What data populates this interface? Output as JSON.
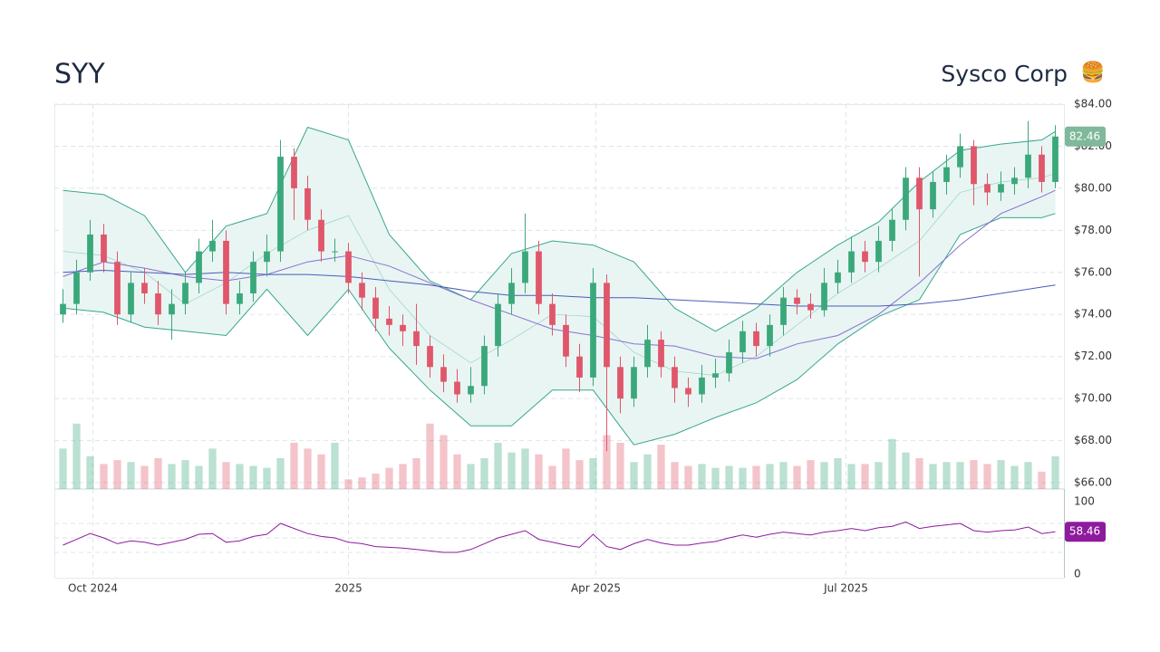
{
  "chart_data": {
    "type": "candlestick",
    "title": "SYY",
    "subtitle": "Sysco Corp",
    "icon": "🍔",
    "xlim": [
      -0.5,
      73.5
    ],
    "xticks": [
      {
        "value": 2.2,
        "label": "Oct 2024"
      },
      {
        "value": 21,
        "label": "2025"
      },
      {
        "value": 39.2,
        "label": "Apr 2025"
      },
      {
        "value": 57.6,
        "label": "Jul 2025"
      }
    ],
    "ylim": [
      65.7,
      84
    ],
    "yticks": [
      {
        "value": 66,
        "label": "$66.00"
      },
      {
        "value": 68,
        "label": "$68.00"
      },
      {
        "value": 70,
        "label": "$70.00"
      },
      {
        "value": 72,
        "label": "$72.00"
      },
      {
        "value": 74,
        "label": "$74.00"
      },
      {
        "value": 76,
        "label": "$76.00"
      },
      {
        "value": 78,
        "label": "$78.00"
      },
      {
        "value": 80,
        "label": "$80.00"
      },
      {
        "value": 82,
        "label": "$82.00"
      },
      {
        "value": 84,
        "label": "$84.00"
      }
    ],
    "grid": true,
    "up_color": "#3aa87a",
    "down_color": "#e0566a",
    "open": [
      74,
      74.5,
      76,
      77.8,
      76.5,
      74,
      75.5,
      75,
      74,
      74.5,
      75.5,
      77,
      77.5,
      74.5,
      75,
      76.5,
      77,
      81.5,
      80,
      78.5,
      77,
      77,
      75.5,
      74.8,
      73.8,
      73.5,
      73.2,
      72.5,
      71.5,
      70.8,
      70.2,
      70.6,
      72.5,
      74.5,
      75.5,
      77,
      74.5,
      73.5,
      72,
      71,
      75.5,
      71.5,
      70,
      71.5,
      72.8,
      71.5,
      70.5,
      70.2,
      71,
      71.2,
      72.2,
      73.2,
      72.5,
      73.5,
      74.8,
      74.5,
      74.2,
      75.5,
      76,
      77,
      76.5,
      77.5,
      78.5,
      80.5,
      79,
      80.3,
      81,
      82,
      80.2,
      79.8,
      80.2,
      80.5,
      81.6,
      80.3
    ],
    "high": [
      75.2,
      76.6,
      78.5,
      78.3,
      77,
      76,
      76.2,
      75.6,
      75.2,
      76,
      77.6,
      78.5,
      78,
      75.6,
      77,
      77.8,
      82.3,
      81.9,
      80.6,
      79,
      77.6,
      77.4,
      76,
      75.3,
      74.4,
      74,
      74.5,
      73,
      72.1,
      71.4,
      71.5,
      73,
      75,
      76.2,
      78.8,
      77.5,
      75,
      74,
      72.6,
      76.2,
      75.9,
      72,
      72,
      73.5,
      73.2,
      72,
      71,
      71.6,
      71.9,
      72.8,
      73.7,
      73.6,
      74,
      75.3,
      75.2,
      75,
      76.2,
      76.6,
      77.7,
      77.5,
      78.2,
      79,
      81,
      81,
      80.8,
      81.6,
      82.6,
      82.3,
      80.7,
      80.8,
      81,
      83.2,
      82,
      83
    ],
    "low": [
      73.6,
      74,
      75.6,
      76,
      73.5,
      73.6,
      74.5,
      73.5,
      72.8,
      74,
      75,
      76.5,
      74,
      74,
      74.6,
      75.8,
      76.5,
      78.5,
      78,
      76.5,
      76.5,
      75,
      74.2,
      73.2,
      73,
      72.5,
      71.6,
      71,
      70.3,
      69.8,
      69.8,
      70.2,
      72,
      74,
      75,
      74,
      73,
      71.5,
      70.3,
      70.6,
      67.5,
      69.3,
      69.6,
      71,
      71,
      69.8,
      69.6,
      69.8,
      70.5,
      70.8,
      71.7,
      72,
      72,
      73,
      74,
      73.8,
      73.9,
      75,
      75.5,
      76,
      76,
      77,
      78,
      75.8,
      78.6,
      79.7,
      80.5,
      79.2,
      79.2,
      79.4,
      79.7,
      80,
      79.8,
      80
    ],
    "close": [
      74.5,
      76,
      77.8,
      76.5,
      74,
      75.5,
      75,
      74,
      74.5,
      75.5,
      77,
      77.5,
      74.5,
      75,
      76.5,
      77,
      81.5,
      80,
      78.5,
      77,
      77,
      75.5,
      74.8,
      73.8,
      73.5,
      73.2,
      72.5,
      71.5,
      70.8,
      70.2,
      70.6,
      72.5,
      74.5,
      75.5,
      77,
      74.5,
      73.5,
      72,
      71,
      75.5,
      71.5,
      70,
      71.5,
      72.8,
      71.5,
      70.5,
      70.2,
      71,
      71.2,
      72.2,
      73.2,
      72.5,
      73.5,
      74.8,
      74.5,
      74.2,
      75.5,
      76,
      77,
      76.5,
      77.5,
      78.5,
      80.5,
      79,
      80.3,
      81,
      82,
      80.2,
      79.8,
      80.2,
      80.5,
      81.6,
      80.3,
      82.46
    ],
    "volume": {
      "ylim": [
        0,
        20
      ],
      "values": [
        2.1,
        3.4,
        1.7,
        1.3,
        1.5,
        1.4,
        1.2,
        1.6,
        1.3,
        1.5,
        1.2,
        2.1,
        1.4,
        1.3,
        1.2,
        1.1,
        1.6,
        2.4,
        2.1,
        1.8,
        2.4,
        0.5,
        0.6,
        0.8,
        1.1,
        1.3,
        1.6,
        3.4,
        2.8,
        1.8,
        1.3,
        1.6,
        2.4,
        1.9,
        2.1,
        1.8,
        1.2,
        2.1,
        1.5,
        1.6,
        2.8,
        2.4,
        1.4,
        1.8,
        2.3,
        1.4,
        1.2,
        1.3,
        1.1,
        1.2,
        1.1,
        1.2,
        1.3,
        1.4,
        1.2,
        1.5,
        1.4,
        1.6,
        1.3,
        1.3,
        1.4,
        2.6,
        1.9,
        1.6,
        1.3,
        1.4,
        1.4,
        1.5,
        1.3,
        1.5,
        1.2,
        1.4,
        0.9,
        1.7
      ]
    },
    "overlay_x": [
      0,
      3,
      6,
      9,
      12,
      15,
      18,
      21,
      24,
      27,
      30,
      33,
      36,
      39,
      42,
      45,
      48,
      51,
      54,
      57,
      60,
      63,
      66,
      69,
      72,
      73
    ],
    "bollinger": {
      "color": "#3aa68e",
      "fill": "#e8f5f3",
      "upper": [
        79.9,
        79.7,
        78.7,
        76.0,
        78.2,
        78.8,
        82.9,
        82.3,
        77.8,
        75.6,
        74.7,
        76.9,
        77.5,
        77.3,
        76.5,
        74.3,
        73.2,
        74.3,
        76.0,
        77.3,
        78.4,
        80.3,
        81.8,
        82.1,
        82.3,
        82.7
      ],
      "middle": [
        77.0,
        76.8,
        76.0,
        74.5,
        75.5,
        76.9,
        78.0,
        78.7,
        75.2,
        73.0,
        71.7,
        72.8,
        74.0,
        73.9,
        72.2,
        71.3,
        71.1,
        72.0,
        73.5,
        75.0,
        76.2,
        77.5,
        79.8,
        80.3,
        80.5,
        80.7
      ],
      "lower": [
        74.3,
        74.1,
        73.4,
        73.2,
        73.0,
        75.2,
        73.0,
        75.2,
        72.4,
        70.4,
        68.7,
        68.7,
        70.4,
        70.4,
        67.8,
        68.3,
        69.1,
        69.8,
        70.9,
        72.6,
        73.9,
        74.7,
        77.8,
        78.6,
        78.6,
        78.8
      ]
    },
    "moving_averages": [
      {
        "color": "#8a6fd0",
        "values": [
          75.8,
          76.5,
          76.2,
          75.8,
          75.6,
          75.9,
          76.5,
          76.8,
          76.3,
          75.5,
          74.7,
          74.0,
          73.3,
          73.0,
          72.6,
          72.5,
          72.0,
          71.9,
          72.6,
          73.0,
          74.0,
          75.5,
          77.3,
          78.8,
          79.6,
          79.9
        ]
      },
      {
        "color": "#4a5bb8",
        "values": [
          76.0,
          76.1,
          76.0,
          75.9,
          76.0,
          75.9,
          75.9,
          75.8,
          75.6,
          75.4,
          75.1,
          74.9,
          74.9,
          74.8,
          74.8,
          74.7,
          74.6,
          74.5,
          74.4,
          74.4,
          74.4,
          74.5,
          74.7,
          75.0,
          75.3,
          75.4
        ]
      }
    ],
    "rsi": {
      "color": "#8e1a9e",
      "ylim": [
        -5,
        117.5
      ],
      "yticks": [
        0,
        100
      ],
      "levels": [
        30,
        50,
        70
      ],
      "values": [
        40,
        48,
        56,
        50,
        42,
        46,
        44,
        40,
        44,
        48,
        55,
        56,
        44,
        46,
        52,
        55,
        70,
        63,
        56,
        52,
        50,
        44,
        42,
        38,
        37,
        36,
        34,
        32,
        30,
        30,
        34,
        42,
        50,
        55,
        60,
        48,
        44,
        40,
        37,
        55,
        38,
        34,
        42,
        48,
        43,
        40,
        40,
        43,
        45,
        50,
        54,
        51,
        55,
        58,
        56,
        54,
        58,
        60,
        63,
        60,
        64,
        66,
        72,
        63,
        66,
        68,
        70,
        60,
        58,
        60,
        61,
        65,
        56,
        58.46
      ]
    }
  }
}
